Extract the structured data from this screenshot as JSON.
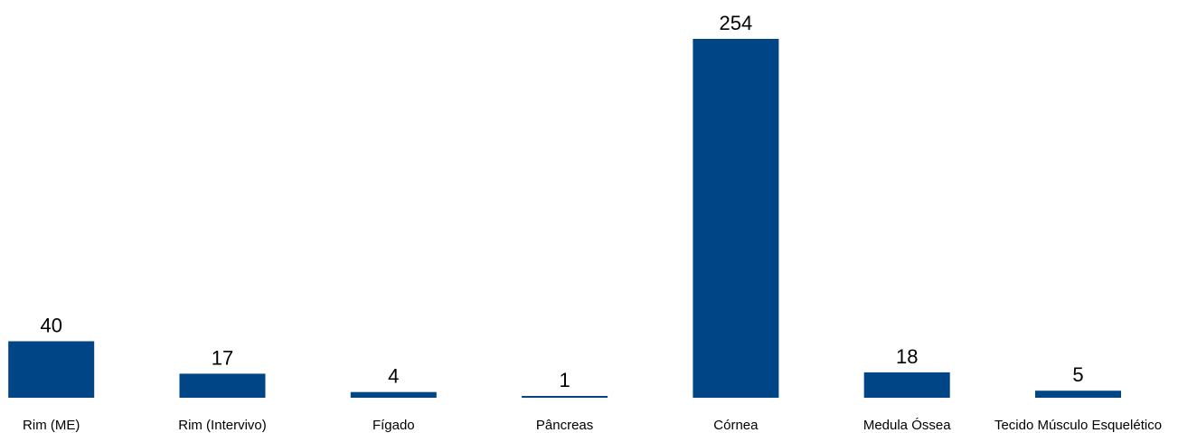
{
  "chart_data": {
    "type": "bar",
    "title": "",
    "xlabel": "",
    "ylabel": "",
    "categories": [
      "Rim (ME)",
      "Rim (Intervivo)",
      "Fígado",
      "Pâncreas",
      "Córnea",
      "Medula Óssea",
      "Tecido Músculo Esquelético"
    ],
    "values": [
      40,
      17,
      4,
      1,
      254,
      18,
      5
    ],
    "data_labels": [
      "40",
      "17",
      "4",
      "1",
      "254",
      "18",
      "5"
    ],
    "ylim": [
      0,
      254
    ],
    "grid": false,
    "legend": "none",
    "bar_color": "#004586"
  }
}
